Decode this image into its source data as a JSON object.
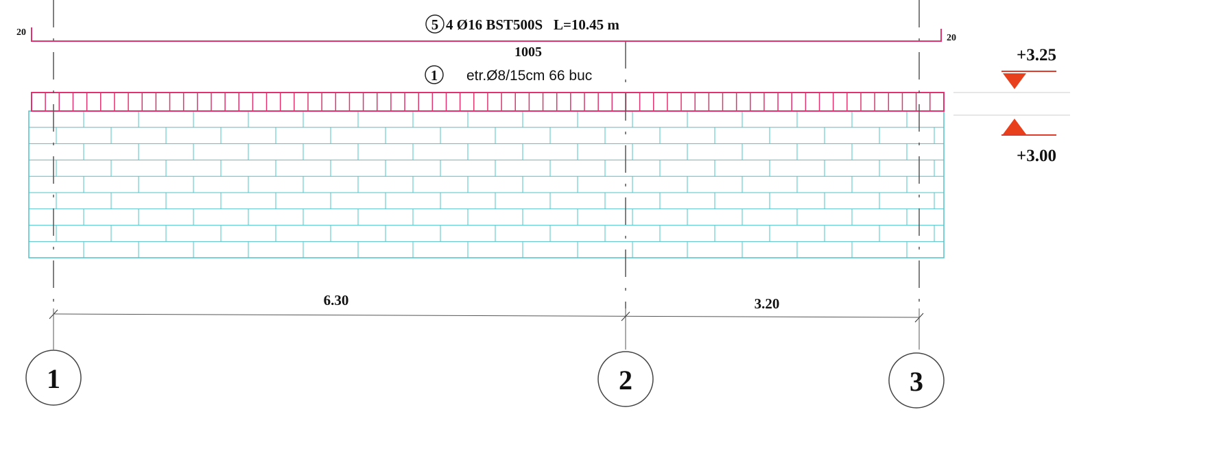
{
  "top_bar": {
    "left_hook": "20",
    "mark": "5",
    "label": "4 Ø16 BST500S   L=10.45 m",
    "right_hook": "20",
    "length": "1005"
  },
  "stirrups": {
    "mark": "1",
    "label": "etr.Ø8/15cm 66 buc"
  },
  "levels": {
    "top": "+3.25",
    "bottom": "+3.00"
  },
  "spans": [
    "6.30",
    "3.20"
  ],
  "axes": [
    "1",
    "2",
    "3"
  ]
}
